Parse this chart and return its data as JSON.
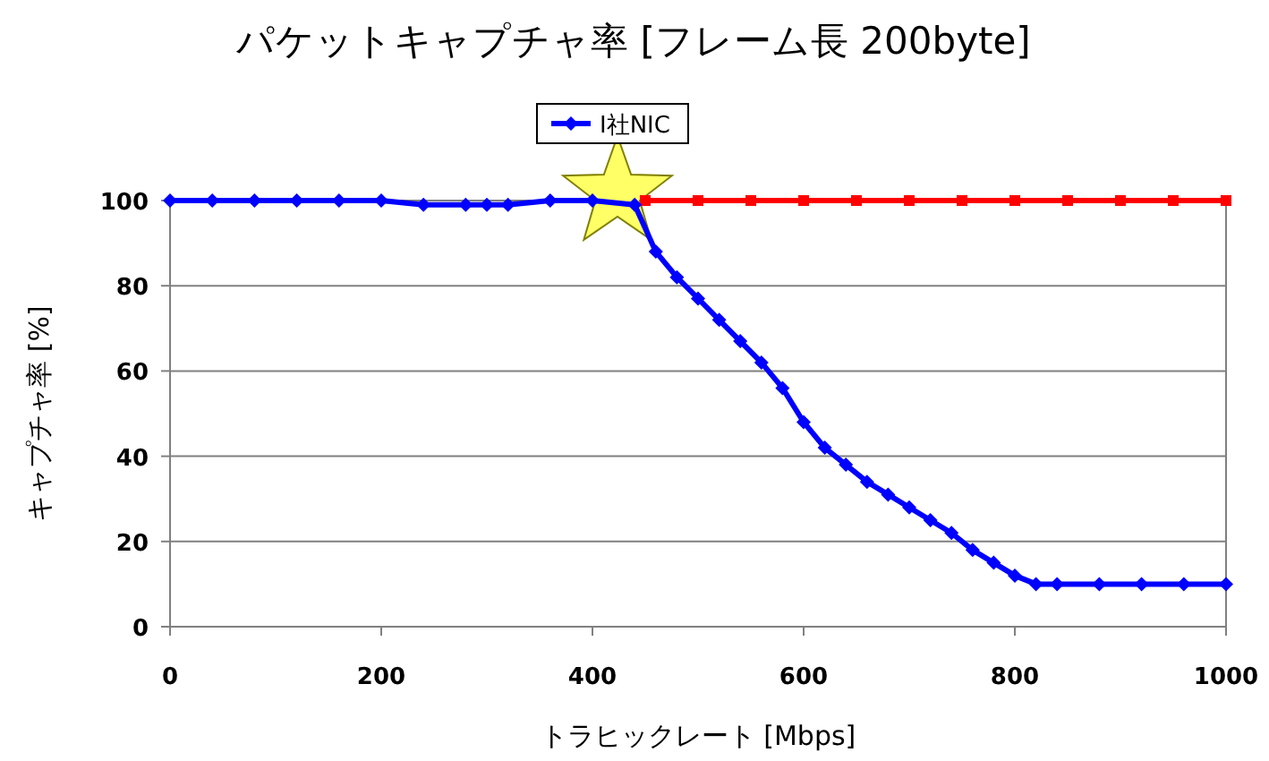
{
  "chart_data": {
    "type": "line",
    "title": "パケットキャプチャ率 [フレーム長 200byte]",
    "xlabel": "トラヒックレート [Mbps]",
    "ylabel": "キャプチャ率 [%]",
    "xlim": [
      0,
      1000
    ],
    "xticks": [
      0,
      200,
      400,
      600,
      800,
      1000
    ],
    "ylim": [
      0,
      100
    ],
    "yticks": [
      0,
      20,
      40,
      60,
      80,
      100
    ],
    "grid": "y",
    "legend": "top",
    "series": [
      {
        "color": "#ff0000",
        "marker": "square",
        "x": [
          450,
          500,
          550,
          600,
          650,
          700,
          750,
          800,
          850,
          900,
          950,
          1000
        ],
        "values": [
          100,
          100,
          100,
          100,
          100,
          100,
          100,
          100,
          100,
          100,
          100,
          100
        ]
      },
      {
        "name": "I社NIC",
        "color": "#0000ff",
        "marker": "diamond",
        "x": [
          0,
          40,
          80,
          120,
          160,
          200,
          240,
          280,
          300,
          320,
          360,
          400,
          440,
          460,
          480,
          500,
          520,
          540,
          560,
          580,
          600,
          620,
          640,
          660,
          680,
          700,
          720,
          740,
          760,
          780,
          800,
          820,
          840,
          880,
          920,
          960,
          1000
        ],
        "values": [
          100,
          100,
          100,
          100,
          100,
          100,
          99,
          99,
          99,
          99,
          100,
          100,
          99,
          88,
          82,
          77,
          72,
          67,
          62,
          56,
          48,
          42,
          38,
          34,
          31,
          28,
          25,
          22,
          18,
          15,
          12,
          10,
          10,
          10,
          10,
          10,
          10
        ]
      }
    ]
  }
}
